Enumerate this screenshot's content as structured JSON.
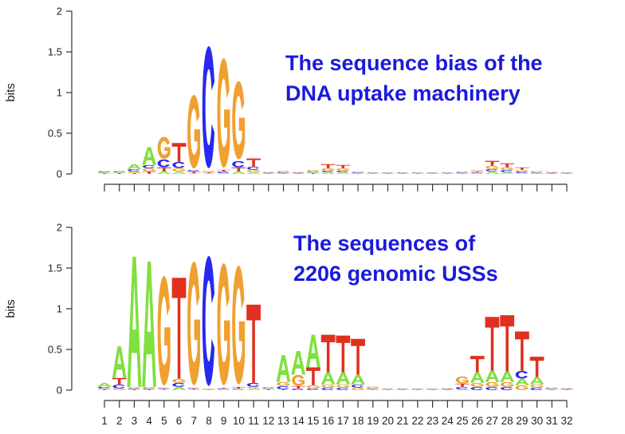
{
  "chart_data": [
    {
      "type": "sequence-logo",
      "title": "",
      "ylabel": "bits",
      "ylim": [
        0,
        2
      ],
      "yticks": [
        "0",
        "0.5",
        "1",
        "1.5",
        "2"
      ],
      "positions": 32,
      "xticks_shown": false,
      "annotation": [
        "The sequence bias of the",
        "DNA uptake machinery"
      ],
      "colors": {
        "A": "#80e040",
        "C": "#2828f0",
        "G": "#f0a030",
        "T": "#e03020"
      },
      "columns": [
        [
          [
            "T",
            0.01
          ],
          [
            "A",
            0.01
          ],
          [
            "C",
            0.01
          ],
          [
            "G",
            0.01
          ]
        ],
        [
          [
            "T",
            0.01
          ],
          [
            "A",
            0.01
          ],
          [
            "C",
            0.01
          ],
          [
            "G",
            0.01
          ]
        ],
        [
          [
            "T",
            0.01
          ],
          [
            "G",
            0.02
          ],
          [
            "C",
            0.03
          ],
          [
            "A",
            0.06
          ]
        ],
        [
          [
            "T",
            0.03
          ],
          [
            "G",
            0.04
          ],
          [
            "C",
            0.04
          ],
          [
            "A",
            0.22
          ]
        ],
        [
          [
            "A",
            0.03
          ],
          [
            "T",
            0.05
          ],
          [
            "C",
            0.1
          ],
          [
            "G",
            0.28
          ]
        ],
        [
          [
            "A",
            0.03
          ],
          [
            "G",
            0.04
          ],
          [
            "C",
            0.08
          ],
          [
            "T",
            0.23
          ]
        ],
        [
          [
            "A",
            0.01
          ],
          [
            "T",
            0.02
          ],
          [
            "C",
            0.02
          ],
          [
            "G",
            0.94
          ]
        ],
        [
          [
            "A",
            0.01
          ],
          [
            "T",
            0.01
          ],
          [
            "G",
            0.02
          ],
          [
            "C",
            1.56
          ]
        ],
        [
          [
            "A",
            0.01
          ],
          [
            "C",
            0.02
          ],
          [
            "T",
            0.02
          ],
          [
            "G",
            1.4
          ]
        ],
        [
          [
            "A",
            0.03
          ],
          [
            "T",
            0.05
          ],
          [
            "C",
            0.08
          ],
          [
            "G",
            1.0
          ]
        ],
        [
          [
            "A",
            0.02
          ],
          [
            "G",
            0.03
          ],
          [
            "C",
            0.04
          ],
          [
            "T",
            0.1
          ]
        ],
        [
          [
            "T",
            0.005
          ],
          [
            "A",
            0.005
          ],
          [
            "C",
            0.005
          ],
          [
            "G",
            0.01
          ]
        ],
        [
          [
            "T",
            0.005
          ],
          [
            "A",
            0.005
          ],
          [
            "C",
            0.01
          ],
          [
            "G",
            0.02
          ]
        ],
        [
          [
            "T",
            0.005
          ],
          [
            "A",
            0.005
          ],
          [
            "C",
            0.005
          ],
          [
            "G",
            0.01
          ]
        ],
        [
          [
            "T",
            0.01
          ],
          [
            "A",
            0.01
          ],
          [
            "C",
            0.01
          ],
          [
            "G",
            0.02
          ]
        ],
        [
          [
            "A",
            0.02
          ],
          [
            "C",
            0.02
          ],
          [
            "G",
            0.03
          ],
          [
            "T",
            0.05
          ]
        ],
        [
          [
            "A",
            0.02
          ],
          [
            "C",
            0.02
          ],
          [
            "G",
            0.03
          ],
          [
            "T",
            0.04
          ]
        ],
        [
          [
            "A",
            0.005
          ],
          [
            "T",
            0.005
          ],
          [
            "C",
            0.01
          ],
          [
            "G",
            0.01
          ]
        ],
        [
          [
            "T",
            0.005
          ],
          [
            "A",
            0.005
          ],
          [
            "C",
            0.005
          ],
          [
            "G",
            0.005
          ]
        ],
        [
          [
            "T",
            0.005
          ],
          [
            "A",
            0.005
          ],
          [
            "C",
            0.005
          ],
          [
            "G",
            0.005
          ]
        ],
        [
          [
            "T",
            0.005
          ],
          [
            "A",
            0.005
          ],
          [
            "C",
            0.005
          ],
          [
            "G",
            0.005
          ]
        ],
        [
          [
            "T",
            0.005
          ],
          [
            "A",
            0.005
          ],
          [
            "C",
            0.005
          ],
          [
            "G",
            0.005
          ]
        ],
        [
          [
            "T",
            0.005
          ],
          [
            "A",
            0.005
          ],
          [
            "C",
            0.005
          ],
          [
            "G",
            0.005
          ]
        ],
        [
          [
            "T",
            0.005
          ],
          [
            "A",
            0.005
          ],
          [
            "C",
            0.005
          ],
          [
            "G",
            0.005
          ]
        ],
        [
          [
            "T",
            0.005
          ],
          [
            "A",
            0.005
          ],
          [
            "C",
            0.01
          ],
          [
            "G",
            0.01
          ]
        ],
        [
          [
            "A",
            0.01
          ],
          [
            "C",
            0.01
          ],
          [
            "T",
            0.01
          ],
          [
            "G",
            0.02
          ]
        ],
        [
          [
            "A",
            0.03
          ],
          [
            "C",
            0.03
          ],
          [
            "G",
            0.04
          ],
          [
            "T",
            0.06
          ]
        ],
        [
          [
            "A",
            0.02
          ],
          [
            "C",
            0.03
          ],
          [
            "G",
            0.03
          ],
          [
            "T",
            0.05
          ]
        ],
        [
          [
            "A",
            0.01
          ],
          [
            "C",
            0.02
          ],
          [
            "G",
            0.02
          ],
          [
            "T",
            0.03
          ]
        ],
        [
          [
            "T",
            0.005
          ],
          [
            "A",
            0.01
          ],
          [
            "C",
            0.01
          ],
          [
            "G",
            0.01
          ]
        ],
        [
          [
            "T",
            0.005
          ],
          [
            "A",
            0.005
          ],
          [
            "C",
            0.005
          ],
          [
            "G",
            0.01
          ]
        ],
        [
          [
            "T",
            0.005
          ],
          [
            "A",
            0.005
          ],
          [
            "C",
            0.005
          ],
          [
            "G",
            0.005
          ]
        ]
      ]
    },
    {
      "type": "sequence-logo",
      "title": "",
      "ylabel": "bits",
      "ylim": [
        0,
        2
      ],
      "yticks": [
        "0",
        "0.5",
        "1",
        "1.5",
        "2"
      ],
      "positions": 32,
      "xticks_shown": true,
      "xticklabels": [
        "1",
        "2",
        "3",
        "4",
        "5",
        "6",
        "7",
        "8",
        "9",
        "10",
        "11",
        "12",
        "13",
        "14",
        "15",
        "16",
        "17",
        "18",
        "19",
        "20",
        "21",
        "22",
        "23",
        "24",
        "25",
        "26",
        "27",
        "28",
        "29",
        "30",
        "31",
        "32"
      ],
      "annotation": [
        "The sequences of",
        "2206 genomic USSs"
      ],
      "colors": {
        "A": "#80e040",
        "C": "#2828f0",
        "G": "#f0a030",
        "T": "#e03020"
      },
      "columns": [
        [
          [
            "T",
            0.01
          ],
          [
            "G",
            0.01
          ],
          [
            "C",
            0.02
          ],
          [
            "A",
            0.05
          ]
        ],
        [
          [
            "G",
            0.02
          ],
          [
            "C",
            0.05
          ],
          [
            "T",
            0.08
          ],
          [
            "A",
            0.39
          ]
        ],
        [
          [
            "T",
            0.01
          ],
          [
            "C",
            0.01
          ],
          [
            "G",
            0.02
          ],
          [
            "A",
            1.6
          ]
        ],
        [
          [
            "T",
            0.01
          ],
          [
            "C",
            0.01
          ],
          [
            "G",
            0.02
          ],
          [
            "A",
            1.54
          ]
        ],
        [
          [
            "A",
            0.01
          ],
          [
            "T",
            0.01
          ],
          [
            "C",
            0.01
          ],
          [
            "G",
            1.4
          ]
        ],
        [
          [
            "A",
            0.04
          ],
          [
            "C",
            0.05
          ],
          [
            "G",
            0.05
          ],
          [
            "T",
            1.24
          ]
        ],
        [
          [
            "A",
            0.01
          ],
          [
            "T",
            0.01
          ],
          [
            "C",
            0.01
          ],
          [
            "G",
            1.58
          ]
        ],
        [
          [
            "A",
            0.005
          ],
          [
            "T",
            0.005
          ],
          [
            "G",
            0.01
          ],
          [
            "C",
            1.66
          ]
        ],
        [
          [
            "A",
            0.01
          ],
          [
            "C",
            0.01
          ],
          [
            "T",
            0.01
          ],
          [
            "G",
            1.56
          ]
        ],
        [
          [
            "A",
            0.01
          ],
          [
            "C",
            0.01
          ],
          [
            "T",
            0.02
          ],
          [
            "G",
            1.52
          ]
        ],
        [
          [
            "A",
            0.02
          ],
          [
            "G",
            0.02
          ],
          [
            "C",
            0.05
          ],
          [
            "T",
            0.96
          ]
        ],
        [
          [
            "T",
            0.01
          ],
          [
            "A",
            0.01
          ],
          [
            "C",
            0.01
          ],
          [
            "G",
            0.01
          ]
        ],
        [
          [
            "T",
            0.01
          ],
          [
            "C",
            0.04
          ],
          [
            "G",
            0.05
          ],
          [
            "A",
            0.33
          ]
        ],
        [
          [
            "C",
            0.02
          ],
          [
            "T",
            0.03
          ],
          [
            "G",
            0.14
          ],
          [
            "A",
            0.29
          ]
        ],
        [
          [
            "C",
            0.02
          ],
          [
            "G",
            0.04
          ],
          [
            "T",
            0.22
          ],
          [
            "A",
            0.4
          ]
        ],
        [
          [
            "C",
            0.03
          ],
          [
            "G",
            0.04
          ],
          [
            "A",
            0.15
          ],
          [
            "T",
            0.46
          ]
        ],
        [
          [
            "C",
            0.03
          ],
          [
            "G",
            0.04
          ],
          [
            "A",
            0.15
          ],
          [
            "T",
            0.45
          ]
        ],
        [
          [
            "G",
            0.03
          ],
          [
            "C",
            0.04
          ],
          [
            "A",
            0.12
          ],
          [
            "T",
            0.44
          ]
        ],
        [
          [
            "T",
            0.005
          ],
          [
            "A",
            0.01
          ],
          [
            "C",
            0.01
          ],
          [
            "G",
            0.02
          ]
        ],
        [
          [
            "T",
            0.005
          ],
          [
            "A",
            0.005
          ],
          [
            "C",
            0.005
          ],
          [
            "G",
            0.005
          ]
        ],
        [
          [
            "T",
            0.005
          ],
          [
            "A",
            0.005
          ],
          [
            "C",
            0.005
          ],
          [
            "G",
            0.005
          ]
        ],
        [
          [
            "T",
            0.005
          ],
          [
            "A",
            0.005
          ],
          [
            "C",
            0.005
          ],
          [
            "G",
            0.005
          ]
        ],
        [
          [
            "T",
            0.005
          ],
          [
            "A",
            0.005
          ],
          [
            "C",
            0.005
          ],
          [
            "G",
            0.005
          ]
        ],
        [
          [
            "T",
            0.005
          ],
          [
            "A",
            0.005
          ],
          [
            "C",
            0.005
          ],
          [
            "G",
            0.01
          ]
        ],
        [
          [
            "A",
            0.01
          ],
          [
            "C",
            0.03
          ],
          [
            "T",
            0.04
          ],
          [
            "G",
            0.09
          ]
        ],
        [
          [
            "C",
            0.04
          ],
          [
            "G",
            0.05
          ],
          [
            "A",
            0.13
          ],
          [
            "T",
            0.2
          ]
        ],
        [
          [
            "C",
            0.04
          ],
          [
            "G",
            0.06
          ],
          [
            "A",
            0.14
          ],
          [
            "T",
            0.66
          ]
        ],
        [
          [
            "C",
            0.04
          ],
          [
            "G",
            0.06
          ],
          [
            "A",
            0.13
          ],
          [
            "T",
            0.69
          ]
        ],
        [
          [
            "G",
            0.06
          ],
          [
            "A",
            0.08
          ],
          [
            "C",
            0.1
          ],
          [
            "T",
            0.48
          ]
        ],
        [
          [
            "C",
            0.03
          ],
          [
            "G",
            0.04
          ],
          [
            "A",
            0.09
          ],
          [
            "T",
            0.25
          ]
        ],
        [
          [
            "T",
            0.005
          ],
          [
            "A",
            0.01
          ],
          [
            "C",
            0.01
          ],
          [
            "G",
            0.01
          ]
        ],
        [
          [
            "T",
            0.005
          ],
          [
            "A",
            0.005
          ],
          [
            "C",
            0.005
          ],
          [
            "G",
            0.01
          ]
        ]
      ]
    }
  ]
}
